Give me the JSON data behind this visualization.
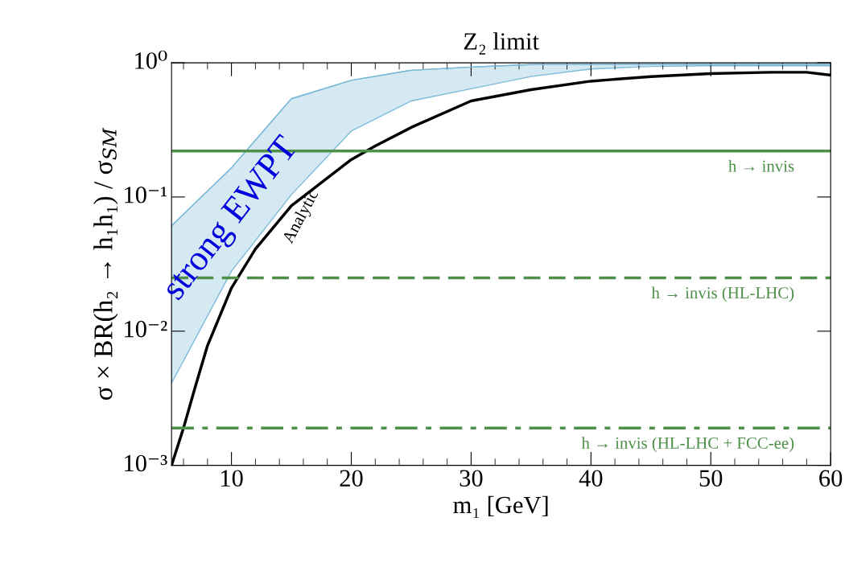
{
  "chart_data": {
    "type": "line",
    "title": "Z₂ limit",
    "xlabel": "m₁ [GeV]",
    "ylabel": "σ × BR(h₂ → h₁h₁) / σ$_{SM}$",
    "log": "y",
    "xlim": [
      5,
      60
    ],
    "ylim": [
      0.001,
      1
    ],
    "xticks": [
      10,
      20,
      30,
      40,
      50,
      60
    ],
    "yticks": [
      {
        "value": 0.001,
        "label": "10⁻³"
      },
      {
        "value": 0.01,
        "label": "10⁻²"
      },
      {
        "value": 0.1,
        "label": "10⁻¹"
      },
      {
        "value": 1,
        "label": "10⁰"
      }
    ],
    "grid": false,
    "legend": false,
    "series": [
      {
        "name": "strong EWPT",
        "type": "line",
        "color": "#7cbad8",
        "x": [
          5,
          10,
          15,
          20,
          25,
          30,
          35,
          40,
          45,
          50,
          55,
          60
        ],
        "values": [
          0.061,
          0.165,
          0.54,
          0.74,
          0.88,
          0.93,
          0.97,
          0.97,
          0.97,
          0.97,
          0.97,
          0.97
        ],
        "upper": [
          0.061,
          0.165,
          0.54,
          0.74,
          0.88,
          0.93,
          0.97,
          0.97,
          0.97,
          0.97,
          0.97,
          0.97
        ],
        "lower": [
          0.0041,
          0.028,
          0.104,
          0.31,
          0.52,
          0.64,
          0.79,
          0.9,
          0.94,
          0.95,
          0.95,
          0.95
        ]
      },
      {
        "name": "Analytic",
        "type": "line",
        "color": "#000000",
        "x": [
          5,
          6,
          7,
          8,
          10,
          12,
          15,
          20,
          22,
          25,
          30,
          35,
          40,
          45,
          50,
          55,
          58,
          60
        ],
        "values": [
          0.001,
          0.0019,
          0.0039,
          0.0078,
          0.021,
          0.041,
          0.086,
          0.19,
          0.24,
          0.33,
          0.52,
          0.63,
          0.73,
          0.79,
          0.83,
          0.85,
          0.85,
          0.81
        ]
      }
    ],
    "ref_lines": [
      {
        "axis": "y",
        "value": 0.22,
        "label": "h → invis",
        "color": "#4e8f4a",
        "line_style": "solid"
      },
      {
        "axis": "y",
        "value": 0.025,
        "label": "h → invis (HL-LHC)",
        "color": "#4e8f4a",
        "line_style": "dashed"
      },
      {
        "axis": "y",
        "value": 0.0019,
        "label": "h → invis (HL-LHC + FCC-ee)",
        "color": "#4e8f4a",
        "line_style": "dashdot"
      }
    ]
  }
}
